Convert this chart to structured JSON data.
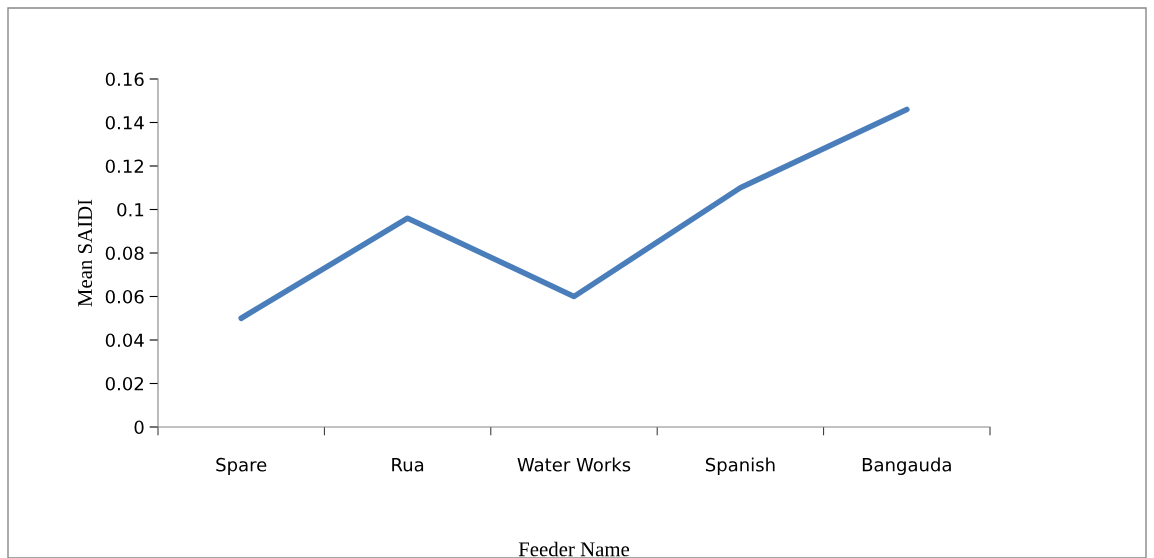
{
  "chart_data": {
    "type": "line",
    "xlabel": "Feeder Name",
    "ylabel": "Mean SAIDI",
    "categories": [
      "Spare",
      "Rua",
      "Water Works",
      "Spanish",
      "Bangauda"
    ],
    "series": [
      {
        "color": "#4a7ebb",
        "values": [
          0.05,
          0.096,
          0.06,
          0.11,
          0.146
        ]
      }
    ],
    "ylim": [
      0,
      0.16
    ],
    "yticks": [
      0,
      0.02,
      0.04,
      0.06,
      0.08,
      0.1,
      0.12,
      0.14,
      0.16
    ],
    "grid": false,
    "legend": false,
    "marker": "none",
    "line_style": "solid"
  }
}
